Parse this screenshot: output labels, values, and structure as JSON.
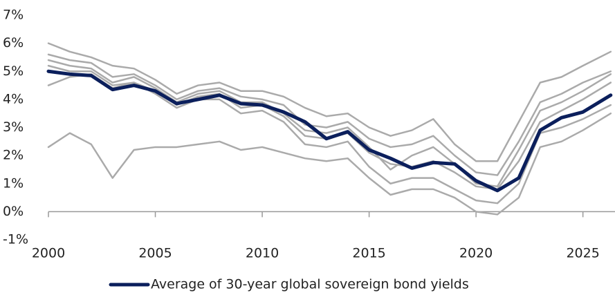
{
  "chart_data": {
    "type": "line",
    "x": [
      2000,
      2001,
      2002,
      2003,
      2004,
      2005,
      2006,
      2007,
      2008,
      2009,
      2010,
      2011,
      2012,
      2013,
      2014,
      2015,
      2016,
      2017,
      2018,
      2019,
      2020,
      2021,
      2022,
      2023,
      2024,
      2025,
      2026.3
    ],
    "series": [
      {
        "color": "#aaaaaa",
        "values": [
          6.0,
          5.7,
          5.5,
          5.2,
          5.1,
          4.7,
          4.2,
          4.5,
          4.6,
          4.3,
          4.3,
          4.1,
          3.7,
          3.4,
          3.5,
          3.0,
          2.7,
          2.9,
          3.3,
          2.4,
          1.8,
          1.8,
          3.2,
          4.6,
          4.8,
          5.2,
          5.7
        ]
      },
      {
        "color": "#aaaaaa",
        "values": [
          5.6,
          5.4,
          5.3,
          4.8,
          4.9,
          4.5,
          4.0,
          4.3,
          4.4,
          4.1,
          4.0,
          3.8,
          3.1,
          3.0,
          3.2,
          2.6,
          2.3,
          2.4,
          2.7,
          2.0,
          1.4,
          1.3,
          2.5,
          3.9,
          4.2,
          4.6,
          5.0
        ]
      },
      {
        "color": "#aaaaaa",
        "values": [
          5.4,
          5.2,
          5.1,
          4.6,
          4.8,
          4.4,
          3.9,
          4.2,
          4.3,
          3.9,
          3.9,
          3.5,
          2.9,
          2.8,
          3.0,
          2.3,
          1.5,
          2.0,
          2.3,
          1.7,
          1.0,
          0.9,
          2.2,
          3.6,
          3.9,
          4.3,
          4.9
        ]
      },
      {
        "color": "#aaaaaa",
        "values": [
          5.2,
          5.0,
          5.0,
          4.5,
          4.6,
          4.3,
          3.8,
          4.1,
          4.2,
          3.7,
          3.8,
          3.4,
          2.7,
          2.6,
          2.8,
          2.1,
          1.7,
          1.6,
          1.8,
          1.4,
          0.9,
          0.8,
          1.8,
          3.2,
          3.6,
          4.0,
          4.6
        ]
      },
      {
        "color": "#aaaaaa",
        "values": [
          4.5,
          4.8,
          4.9,
          4.4,
          4.6,
          4.2,
          3.7,
          4.0,
          4.0,
          3.5,
          3.6,
          3.2,
          2.4,
          2.3,
          2.5,
          1.6,
          1.0,
          1.2,
          1.2,
          0.8,
          0.4,
          0.3,
          1.0,
          2.8,
          3.0,
          3.3,
          3.8
        ]
      },
      {
        "color": "#aaaaaa",
        "values": [
          2.3,
          2.8,
          2.4,
          1.2,
          2.2,
          2.3,
          2.3,
          2.4,
          2.5,
          2.2,
          2.3,
          2.1,
          1.9,
          1.8,
          1.9,
          1.2,
          0.6,
          0.8,
          0.8,
          0.5,
          0.0,
          -0.1,
          0.5,
          2.3,
          2.5,
          2.9,
          3.5
        ]
      },
      {
        "name": "Average of 30-year global sovereign bond yields",
        "color": "#0b1f5c",
        "values": [
          5.0,
          4.9,
          4.85,
          4.35,
          4.5,
          4.3,
          3.85,
          4.0,
          4.15,
          3.85,
          3.8,
          3.55,
          3.2,
          2.6,
          2.85,
          2.2,
          1.9,
          1.55,
          1.75,
          1.7,
          1.1,
          0.75,
          1.2,
          2.9,
          3.35,
          3.55,
          4.15
        ]
      }
    ],
    "xlim": [
      2000,
      2026.5
    ],
    "xticks": [
      2000,
      2005,
      2010,
      2015,
      2020,
      2025
    ],
    "ylim": [
      -1,
      7
    ],
    "yticks": [
      {
        "value": -1,
        "label": "-1%"
      },
      {
        "value": 0,
        "label": "0%"
      },
      {
        "value": 1,
        "label": "1%"
      },
      {
        "value": 2,
        "label": "2%"
      },
      {
        "value": 3,
        "label": "3%"
      },
      {
        "value": 4,
        "label": "4%"
      },
      {
        "value": 5,
        "label": "5%"
      },
      {
        "value": 6,
        "label": "6%"
      },
      {
        "value": 7,
        "label": "7%"
      }
    ],
    "grid": false,
    "legend": "bottom"
  }
}
